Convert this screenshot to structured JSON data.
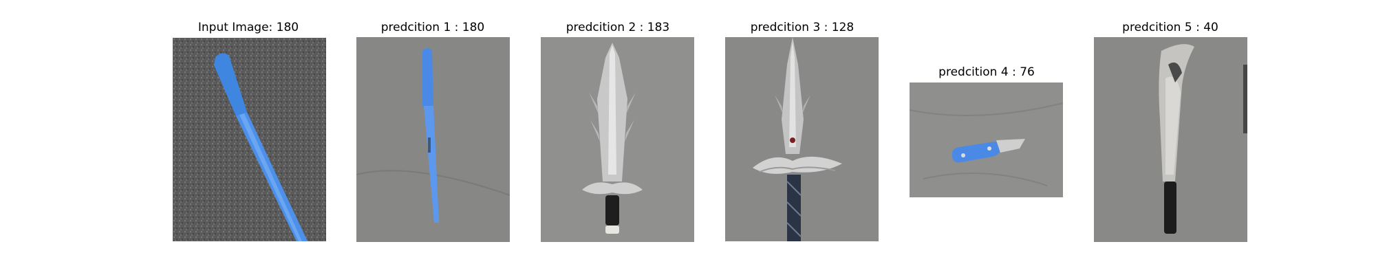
{
  "figure": {
    "panels": [
      {
        "title": "Input Image: 180",
        "image": "blue-kitchen-knife-on-asphalt"
      },
      {
        "title": "predcition 1 : 180",
        "image": "blue-kitchen-knife-on-concrete"
      },
      {
        "title": "predcition 2 : 183",
        "image": "fantasy-dagger-on-concrete"
      },
      {
        "title": "predcition 3 : 128",
        "image": "fantasy-sword-on-concrete"
      },
      {
        "title": "predcition 4 : 76",
        "image": "blue-folding-knife-on-concrete"
      },
      {
        "title": "predcition 5 : 40",
        "image": "machete-on-concrete"
      }
    ]
  }
}
